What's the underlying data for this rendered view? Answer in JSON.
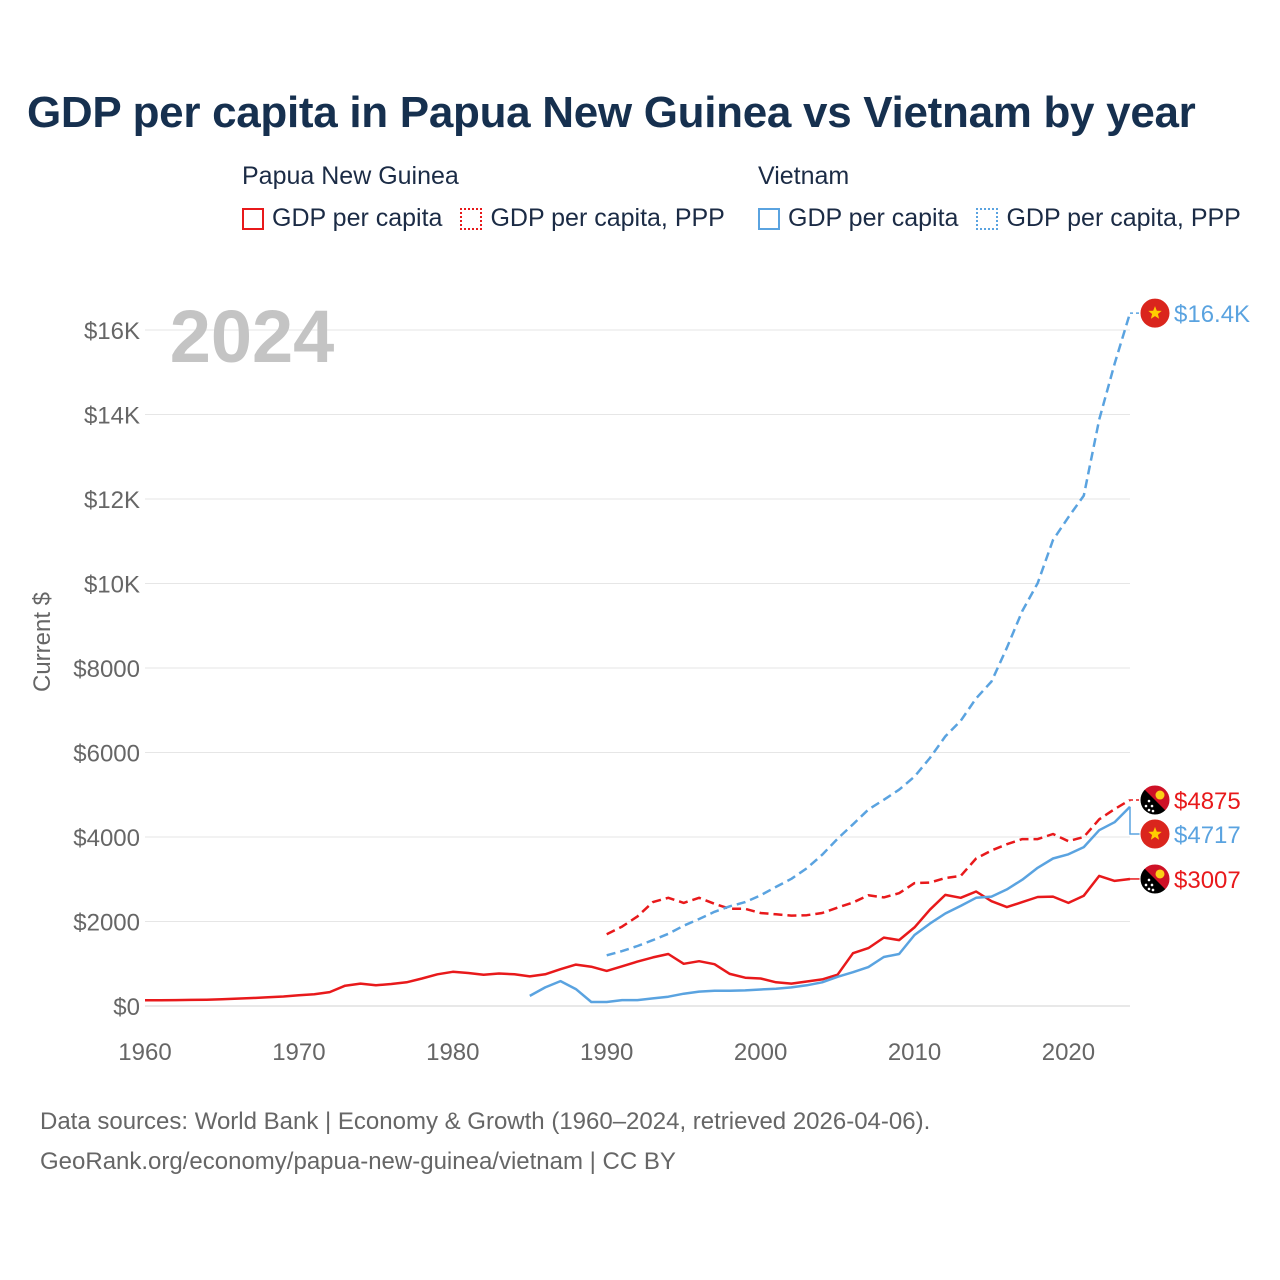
{
  "title": "GDP per capita in Papua New Guinea vs Vietnam by year",
  "legend": {
    "png": {
      "name": "Papua New Guinea",
      "gdp": "GDP per capita",
      "ppp": "GDP per capita, PPP",
      "color": "#e8191b"
    },
    "vn": {
      "name": "Vietnam",
      "gdp": "GDP per capita",
      "ppp": "GDP per capita, PPP",
      "color": "#5aa3e0"
    }
  },
  "footer": {
    "line1": "Data sources: World Bank | Economy & Growth (1960–2024, retrieved 2026-04-06).",
    "line2": "GeoRank.org/economy/papua-new-guinea/vietnam | CC BY"
  },
  "chart_data": {
    "type": "line",
    "title": "GDP per capita in Papua New Guinea vs Vietnam by year",
    "year_label": "2024",
    "ylabel": "Current $",
    "xlim": [
      1960,
      2024
    ],
    "ylim": [
      0,
      17000
    ],
    "grid": true,
    "x_ticks": [
      1960,
      1970,
      1980,
      1990,
      2000,
      2010,
      2020
    ],
    "y_ticks": [
      {
        "value": 0,
        "label": "$0"
      },
      {
        "value": 2000,
        "label": "$2000"
      },
      {
        "value": 4000,
        "label": "$4000"
      },
      {
        "value": 6000,
        "label": "$6000"
      },
      {
        "value": 8000,
        "label": "$8000"
      },
      {
        "value": 10000,
        "label": "$10K"
      },
      {
        "value": 12000,
        "label": "$12K"
      },
      {
        "value": 14000,
        "label": "$14K"
      },
      {
        "value": 16000,
        "label": "$16K"
      }
    ],
    "series": [
      {
        "name": "Papua New Guinea GDP per capita",
        "key": "png-gdp",
        "color": "#e8191b",
        "dashed": false,
        "end_label": "$3007",
        "flag": "png",
        "x": [
          1960,
          1961,
          1962,
          1963,
          1964,
          1965,
          1966,
          1967,
          1968,
          1969,
          1970,
          1971,
          1972,
          1973,
          1974,
          1975,
          1976,
          1977,
          1978,
          1979,
          1980,
          1981,
          1982,
          1983,
          1984,
          1985,
          1986,
          1987,
          1988,
          1989,
          1990,
          1991,
          1992,
          1993,
          1994,
          1995,
          1996,
          1997,
          1998,
          1999,
          2000,
          2001,
          2002,
          2003,
          2004,
          2005,
          2006,
          2007,
          2008,
          2009,
          2010,
          2011,
          2012,
          2013,
          2014,
          2015,
          2016,
          2017,
          2018,
          2019,
          2020,
          2021,
          2022,
          2023,
          2024
        ],
        "values": [
          135,
          137,
          140,
          145,
          150,
          160,
          175,
          190,
          205,
          225,
          255,
          280,
          330,
          480,
          530,
          490,
          520,
          560,
          650,
          750,
          810,
          780,
          740,
          770,
          750,
          700,
          750,
          870,
          980,
          930,
          830,
          940,
          1050,
          1150,
          1230,
          1000,
          1060,
          990,
          760,
          670,
          650,
          560,
          530,
          580,
          630,
          740,
          1250,
          1370,
          1620,
          1560,
          1860,
          2280,
          2630,
          2560,
          2710,
          2480,
          2340,
          2460,
          2580,
          2590,
          2440,
          2610,
          3080,
          2960,
          3007
        ]
      },
      {
        "name": "Papua New Guinea GDP per capita, PPP",
        "key": "png-ppp",
        "color": "#e8191b",
        "dashed": true,
        "end_label": "$4875",
        "flag": "png",
        "x": [
          1990,
          1991,
          1992,
          1993,
          1994,
          1995,
          1996,
          1997,
          1998,
          1999,
          2000,
          2001,
          2002,
          2003,
          2004,
          2005,
          2006,
          2007,
          2008,
          2009,
          2010,
          2011,
          2012,
          2013,
          2014,
          2015,
          2016,
          2017,
          2018,
          2019,
          2020,
          2021,
          2022,
          2023,
          2024
        ],
        "values": [
          1700,
          1880,
          2120,
          2460,
          2560,
          2440,
          2560,
          2420,
          2300,
          2300,
          2200,
          2170,
          2140,
          2150,
          2200,
          2330,
          2450,
          2620,
          2570,
          2670,
          2910,
          2920,
          3030,
          3080,
          3490,
          3680,
          3830,
          3950,
          3950,
          4070,
          3900,
          4000,
          4420,
          4660,
          4875
        ]
      },
      {
        "name": "Vietnam GDP per capita",
        "key": "vn-gdp",
        "color": "#5aa3e0",
        "dashed": false,
        "end_label": "$4717",
        "flag": "vn",
        "x": [
          1985,
          1986,
          1987,
          1988,
          1989,
          1990,
          1991,
          1992,
          1993,
          1994,
          1995,
          1996,
          1997,
          1998,
          1999,
          2000,
          2001,
          2002,
          2003,
          2004,
          2005,
          2006,
          2007,
          2008,
          2009,
          2010,
          2011,
          2012,
          2013,
          2014,
          2015,
          2016,
          2017,
          2018,
          2019,
          2020,
          2021,
          2022,
          2023,
          2024
        ],
        "values": [
          240,
          440,
          590,
          400,
          95,
          95,
          140,
          140,
          180,
          220,
          290,
          340,
          360,
          360,
          370,
          390,
          410,
          440,
          490,
          560,
          690,
          800,
          920,
          1160,
          1230,
          1680,
          1950,
          2190,
          2370,
          2560,
          2590,
          2760,
          2990,
          3270,
          3490,
          3590,
          3760,
          4160,
          4350,
          4717
        ]
      },
      {
        "name": "Vietnam GDP per capita, PPP",
        "key": "vn-ppp",
        "color": "#5aa3e0",
        "dashed": true,
        "end_label": "$16.4K",
        "flag": "vn",
        "x": [
          1990,
          1991,
          1992,
          1993,
          1994,
          1995,
          1996,
          1997,
          1998,
          1999,
          2000,
          2001,
          2002,
          2003,
          2004,
          2005,
          2006,
          2007,
          2008,
          2009,
          2010,
          2011,
          2012,
          2013,
          2014,
          2015,
          2016,
          2017,
          2018,
          2019,
          2020,
          2021,
          2022,
          2023,
          2024
        ],
        "values": [
          1200,
          1300,
          1420,
          1560,
          1710,
          1900,
          2060,
          2230,
          2360,
          2460,
          2620,
          2820,
          3010,
          3260,
          3580,
          3960,
          4300,
          4650,
          4880,
          5120,
          5430,
          5870,
          6380,
          6750,
          7280,
          7680,
          8480,
          9350,
          10010,
          11030,
          11570,
          12080,
          13880,
          15200,
          16400
        ]
      }
    ]
  }
}
